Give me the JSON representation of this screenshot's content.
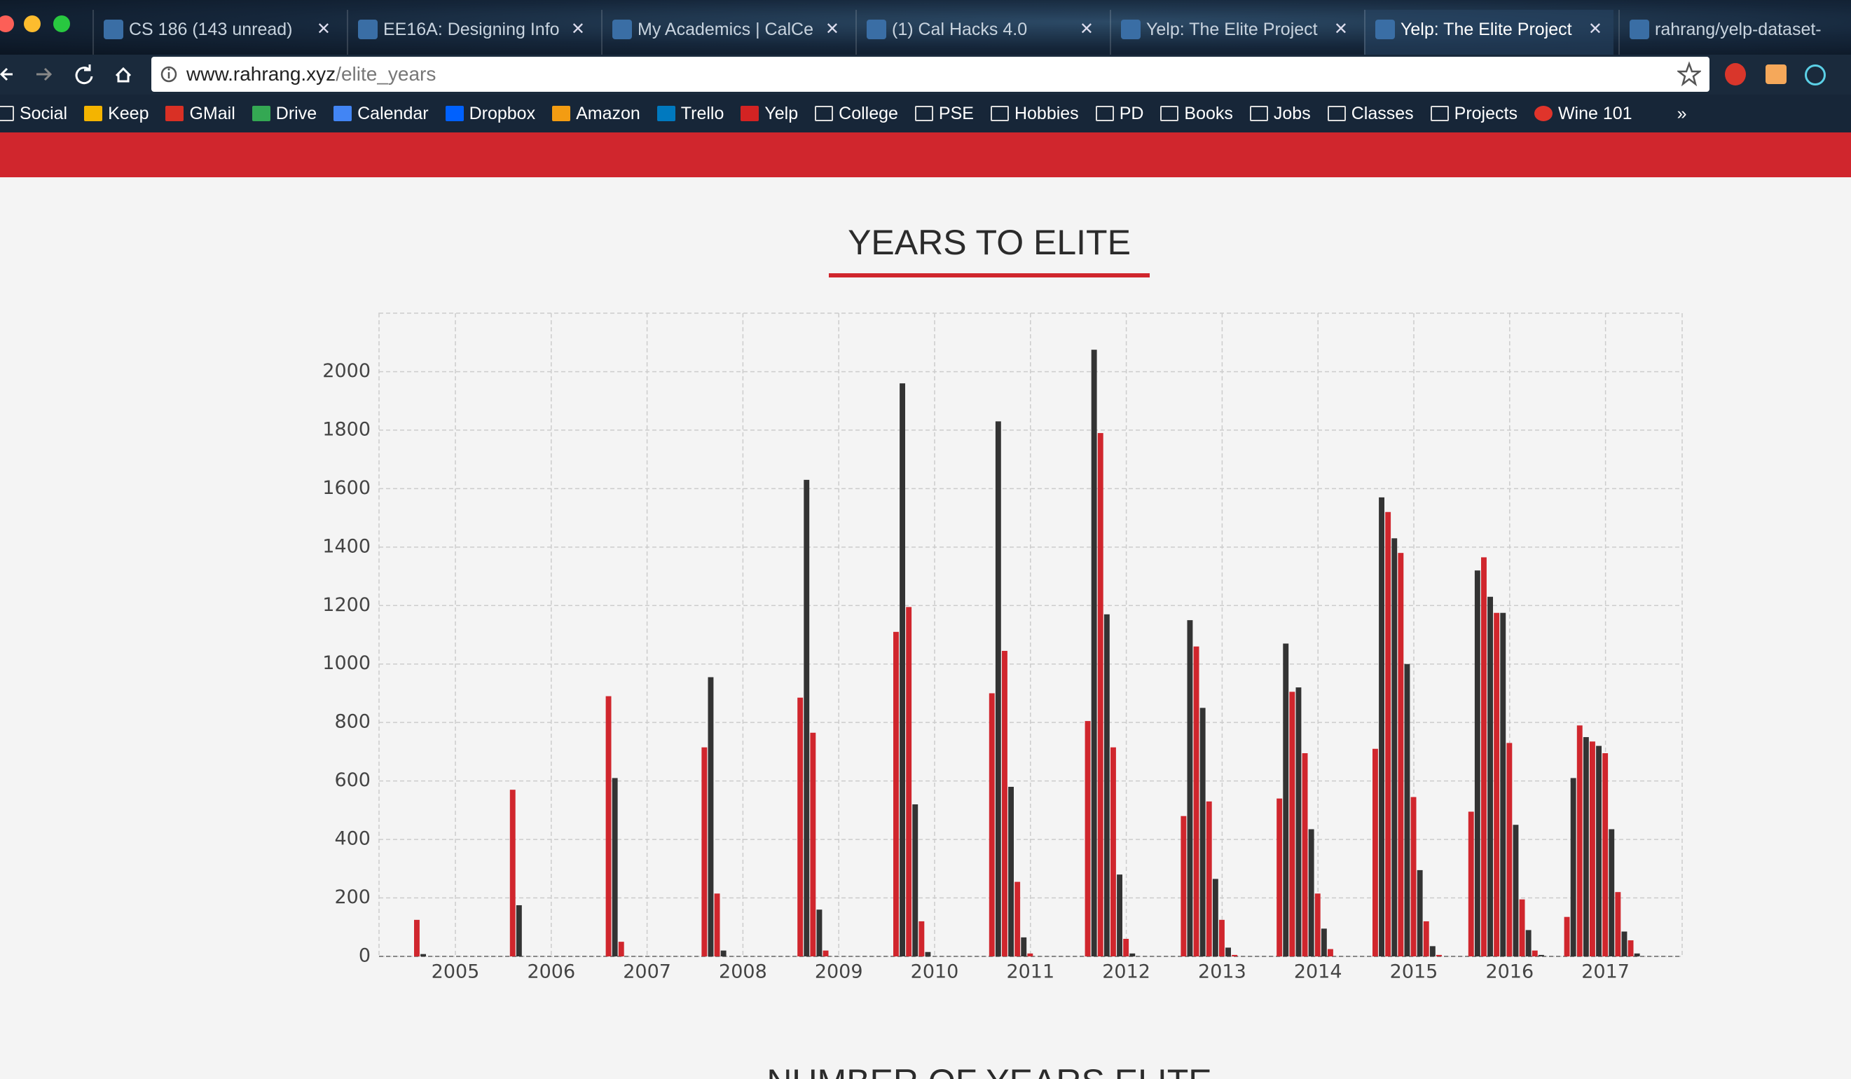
{
  "browser": {
    "tabs": [
      "CS 186 (143 unread)",
      "EE16A: Designing Info",
      "My Academics | CalCe",
      "(1) Cal Hacks 4.0",
      "Yelp: The Elite Project",
      "Yelp: The Elite Project",
      "rahrang/yelp-dataset-"
    ],
    "url": {
      "host": "www.rahrang.xyz",
      "path": "/elite_years"
    },
    "bookmarks": [
      "Social",
      "Keep",
      "GMail",
      "Drive",
      "Calendar",
      "Dropbox",
      "Amazon",
      "Trello",
      "Yelp",
      "College",
      "PSE",
      "Hobbies",
      "PD",
      "Books",
      "Jobs",
      "Classes",
      "Projects",
      "Wine 101"
    ],
    "more": "»"
  },
  "next_section_title": "NUMBER OF YEARS ELITE",
  "chart_data": {
    "type": "bar",
    "title": "YEARS TO ELITE",
    "categories": [
      "2005",
      "2006",
      "2007",
      "2008",
      "2009",
      "2010",
      "2011",
      "2012",
      "2013",
      "2014",
      "2015",
      "2016",
      "2017"
    ],
    "series": [
      {
        "color": "#d0262d",
        "values": [
          125,
          570,
          890,
          715,
          885,
          1110,
          900,
          805,
          480,
          540,
          710,
          495,
          135
        ]
      },
      {
        "color": "#333333",
        "values": [
          8,
          175,
          610,
          955,
          1630,
          1960,
          1830,
          2075,
          1150,
          1070,
          1570,
          1320,
          610
        ]
      },
      {
        "color": "#d0262d",
        "values": [
          null,
          null,
          50,
          215,
          765,
          1195,
          1045,
          1790,
          1060,
          905,
          1520,
          1365,
          790
        ]
      },
      {
        "color": "#333333",
        "values": [
          null,
          null,
          null,
          20,
          160,
          520,
          580,
          1170,
          850,
          920,
          1430,
          1230,
          750
        ]
      },
      {
        "color": "#d0262d",
        "values": [
          null,
          null,
          null,
          null,
          20,
          120,
          255,
          715,
          530,
          695,
          1380,
          1175,
          735
        ]
      },
      {
        "color": "#333333",
        "values": [
          null,
          null,
          null,
          null,
          null,
          15,
          65,
          280,
          265,
          435,
          1000,
          1175,
          720
        ]
      },
      {
        "color": "#d0262d",
        "values": [
          null,
          null,
          null,
          null,
          null,
          null,
          10,
          60,
          125,
          215,
          545,
          730,
          695
        ]
      },
      {
        "color": "#333333",
        "values": [
          null,
          null,
          null,
          null,
          null,
          null,
          null,
          10,
          30,
          95,
          295,
          450,
          435
        ]
      },
      {
        "color": "#d0262d",
        "values": [
          null,
          null,
          null,
          null,
          null,
          null,
          null,
          null,
          5,
          25,
          120,
          195,
          220
        ]
      },
      {
        "color": "#333333",
        "values": [
          null,
          null,
          null,
          null,
          null,
          null,
          null,
          null,
          null,
          null,
          35,
          90,
          85
        ]
      },
      {
        "color": "#d0262d",
        "values": [
          null,
          null,
          null,
          null,
          null,
          null,
          null,
          null,
          null,
          null,
          5,
          20,
          55
        ]
      },
      {
        "color": "#333333",
        "values": [
          null,
          null,
          null,
          null,
          null,
          null,
          null,
          null,
          null,
          null,
          null,
          5,
          10
        ]
      }
    ],
    "ylim": [
      0,
      2200
    ],
    "yticks": [
      0,
      200,
      400,
      600,
      800,
      1000,
      1200,
      1400,
      1600,
      1800,
      2000
    ],
    "grid": true
  }
}
